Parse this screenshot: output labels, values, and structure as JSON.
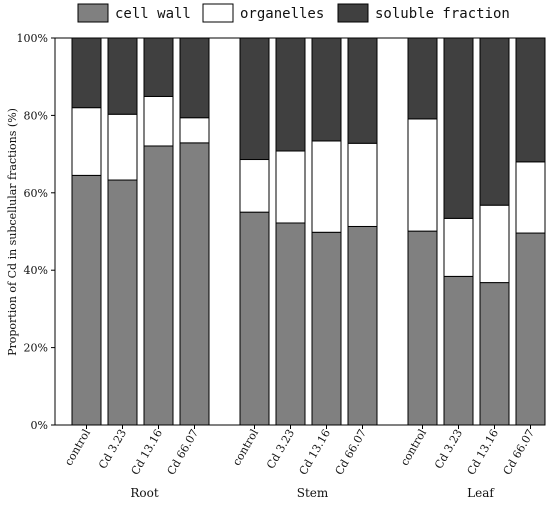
{
  "chart_data": {
    "type": "bar",
    "stacked": true,
    "title": "",
    "ylabel": "Proportion of Cd in subcellular fractions (%)",
    "xlabel": "",
    "ylim": [
      0,
      100
    ],
    "yticks": [
      "0%",
      "20%",
      "40%",
      "60%",
      "80%",
      "100%"
    ],
    "legend_position": "top",
    "groups": [
      {
        "name": "Root",
        "categories": [
          "control",
          "Cd 3.23",
          "Cd 13.16",
          "Cd 66.07"
        ]
      },
      {
        "name": "Stem",
        "categories": [
          "control",
          "Cd 3.23",
          "Cd 13.16",
          "Cd 66.07"
        ]
      },
      {
        "name": "Leaf",
        "categories": [
          "control",
          "Cd 3.23",
          "Cd 13.16",
          "Cd 66.07"
        ]
      }
    ],
    "series": [
      {
        "name": "cell wall",
        "color": "#808080",
        "values": [
          64.5,
          63.3,
          72.1,
          72.9,
          55.0,
          52.2,
          49.8,
          51.3,
          50.1,
          38.4,
          36.8,
          49.6
        ]
      },
      {
        "name": "organelles",
        "color": "#ffffff",
        "values": [
          17.5,
          17.0,
          12.8,
          6.5,
          13.6,
          18.6,
          23.6,
          21.5,
          29.0,
          15.0,
          20.0,
          18.4
        ]
      },
      {
        "name": "soluble fraction",
        "color": "#404040",
        "values": [
          18.0,
          19.7,
          15.1,
          20.6,
          31.4,
          29.2,
          26.6,
          27.2,
          20.9,
          46.6,
          43.2,
          32.0
        ]
      }
    ]
  }
}
